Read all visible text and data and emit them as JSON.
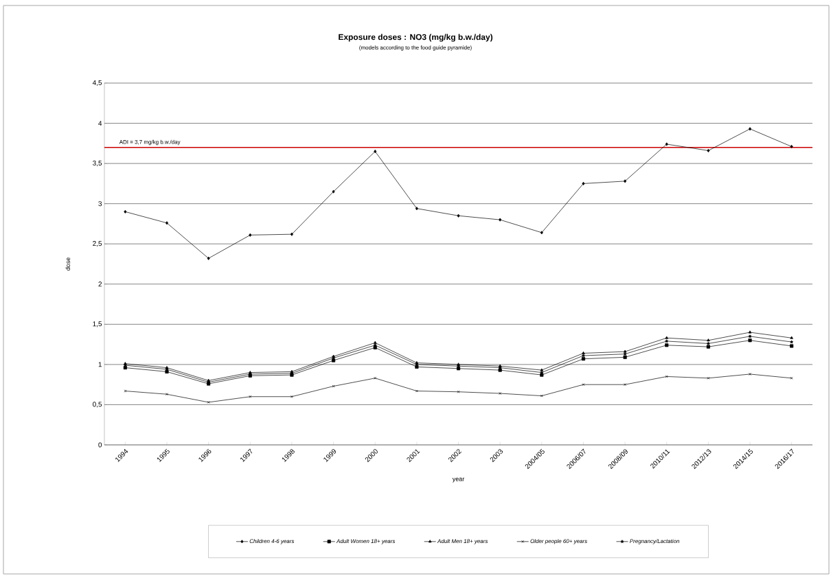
{
  "chart_data": {
    "type": "line",
    "title": "Exposure doses : NO3 (mg/kg b.w./day)",
    "subtitle": "(models according to the food guide pyramide)",
    "xlabel": "year",
    "ylabel": "dose",
    "categories": [
      "1994",
      "1995",
      "1996",
      "1997",
      "1998",
      "1999",
      "2000",
      "2001",
      "2002",
      "2003",
      "2004/05",
      "2006/07",
      "2008/09",
      "2010/11",
      "2012/13",
      "2014/15",
      "2016/17"
    ],
    "series": [
      {
        "name": "Children 4-6 years",
        "color": "#000000",
        "marker": "diamond",
        "values": [
          2.9,
          2.76,
          2.32,
          2.61,
          2.62,
          3.15,
          3.65,
          2.94,
          2.85,
          2.8,
          2.64,
          3.25,
          3.28,
          3.74,
          3.66,
          3.93,
          3.71
        ]
      },
      {
        "name": "Adult Women 18+ years",
        "color": "#000000",
        "marker": "square",
        "values": [
          0.96,
          0.91,
          0.76,
          0.86,
          0.87,
          1.05,
          1.21,
          0.97,
          0.95,
          0.93,
          0.87,
          1.07,
          1.09,
          1.24,
          1.22,
          1.3,
          1.23
        ]
      },
      {
        "name": "Adult Men 18+ years",
        "color": "#000000",
        "marker": "triangle",
        "values": [
          1.01,
          0.96,
          0.8,
          0.9,
          0.91,
          1.1,
          1.27,
          1.02,
          1.0,
          0.98,
          0.93,
          1.14,
          1.16,
          1.33,
          1.3,
          1.4,
          1.33
        ]
      },
      {
        "name": "Older people 60+ years",
        "color": "#000000",
        "marker": "cross",
        "values": [
          0.67,
          0.63,
          0.53,
          0.6,
          0.6,
          0.73,
          0.83,
          0.67,
          0.66,
          0.64,
          0.61,
          0.75,
          0.75,
          0.85,
          0.83,
          0.88,
          0.83
        ]
      },
      {
        "name": "Pregnancy/Lactation",
        "color": "#000000",
        "marker": "star",
        "values": [
          0.99,
          0.94,
          0.78,
          0.88,
          0.89,
          1.08,
          1.24,
          1.0,
          0.98,
          0.96,
          0.9,
          1.11,
          1.13,
          1.29,
          1.26,
          1.35,
          1.28
        ]
      }
    ],
    "ylim": [
      0,
      4.5
    ],
    "yticks": [
      {
        "value": 0,
        "label": "0"
      },
      {
        "value": 0.5,
        "label": "0,5"
      },
      {
        "value": 1,
        "label": "1"
      },
      {
        "value": 1.5,
        "label": "1,5"
      },
      {
        "value": 2,
        "label": "2"
      },
      {
        "value": 2.5,
        "label": "2,5"
      },
      {
        "value": 3,
        "label": "3"
      },
      {
        "value": 3.5,
        "label": "3,5"
      },
      {
        "value": 4,
        "label": "4"
      },
      {
        "value": 4.5,
        "label": "4,5"
      }
    ],
    "grid": "y",
    "legend": "bottom",
    "line_style": "solid",
    "ref_lines": [
      {
        "axis": "y",
        "value": 3.7,
        "label": "ADI = 3,7 mg/kg b.w./day",
        "color": "#cc0000"
      }
    ]
  }
}
